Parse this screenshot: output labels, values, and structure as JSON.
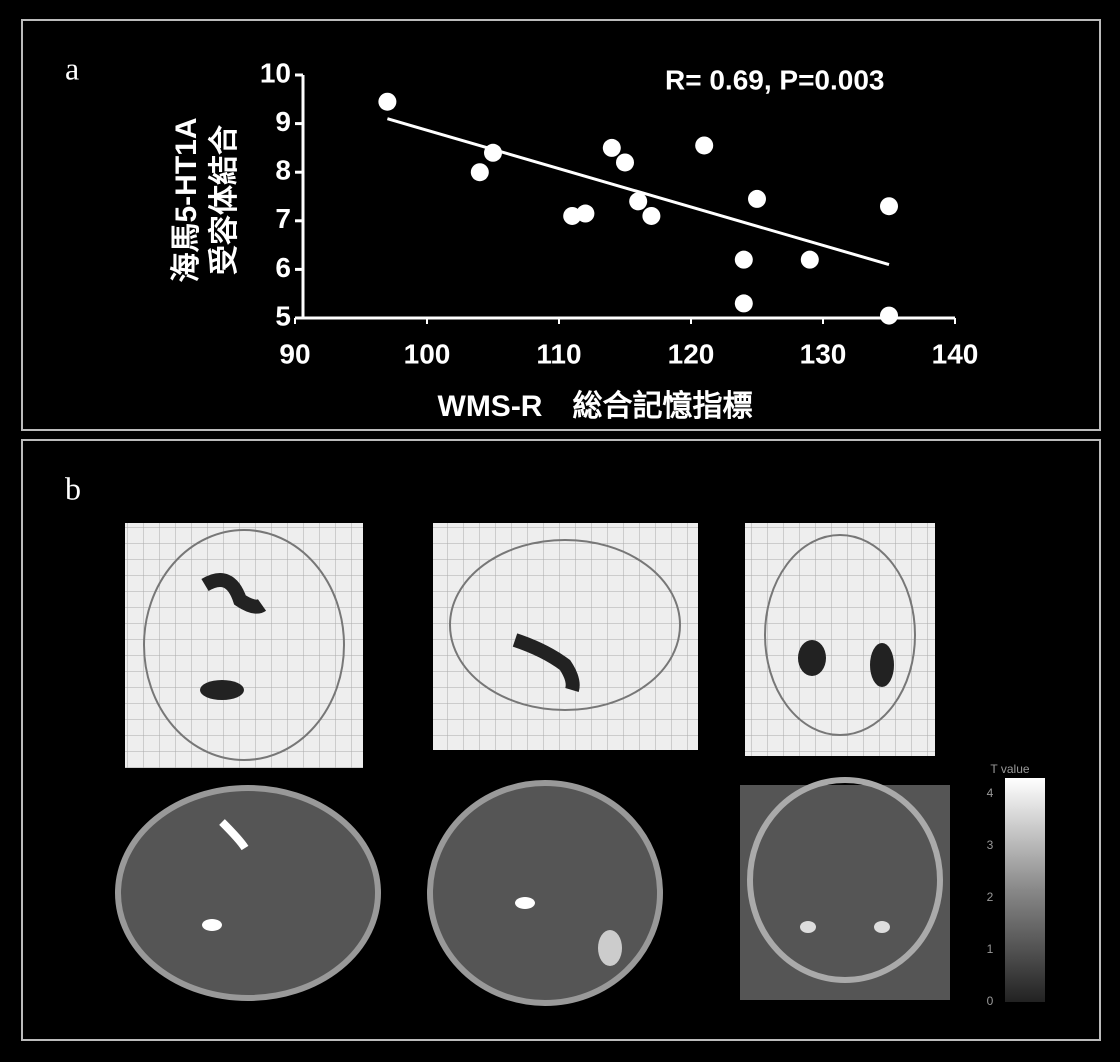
{
  "panel_labels": [
    "a",
    "b"
  ],
  "chart_data": [
    {
      "type": "scatter",
      "annotation": "R= 0.69, P=0.003",
      "x_label": "WMS-R　総合記憶指標",
      "y_label": [
        "海馬5-HT1A",
        "受容体結合"
      ],
      "x": [
        97,
        104,
        105,
        111,
        112,
        114,
        115,
        116,
        117,
        121,
        124,
        124,
        125,
        129,
        135,
        135
      ],
      "values": [
        9.45,
        8.0,
        8.4,
        7.1,
        7.15,
        8.5,
        8.2,
        7.4,
        7.1,
        8.55,
        6.2,
        5.3,
        7.45,
        6.2,
        7.3,
        5.05
      ],
      "fit_line": {
        "x": [
          97,
          135
        ],
        "values": [
          9.1,
          6.1
        ]
      },
      "color": "#ffffff",
      "xlim": [
        90,
        140
      ],
      "xticks": [
        90,
        100,
        110,
        120,
        130,
        140
      ],
      "ylim": [
        5,
        10
      ],
      "yticks": [
        5,
        6,
        7,
        8,
        9,
        10
      ]
    },
    {
      "type": "colorbar",
      "title": "T value",
      "ylim": [
        0,
        4.3
      ],
      "yticks": [
        0,
        1,
        2,
        3,
        4
      ]
    }
  ]
}
